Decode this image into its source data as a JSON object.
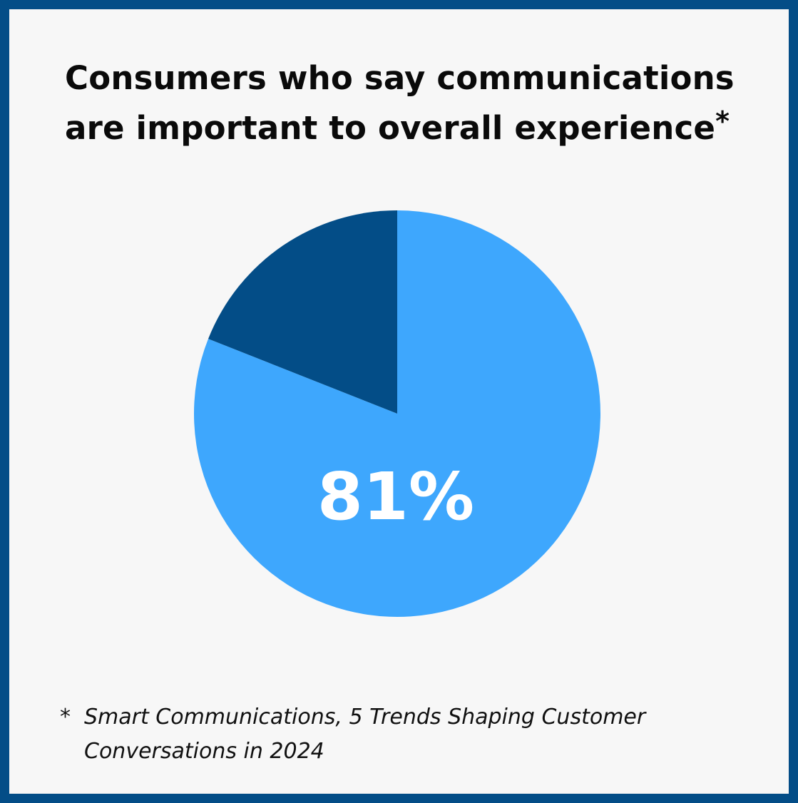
{
  "title_line1": "Consumers who say communications",
  "title_line2": "are important to overall experience",
  "title_mark": "*",
  "footnote_mark": "*",
  "footnote_line1": "Smart Communications, 5 Trends Shaping Customer",
  "footnote_line2": "Conversations in 2024",
  "colors": {
    "border": "#034d87",
    "background": "#f7f7f7",
    "main_slice": "#3ea7fd",
    "remainder_slice": "#034d87",
    "label": "#ffffff"
  },
  "chart_data": {
    "type": "pie",
    "values": [
      81,
      19
    ],
    "data_labels": [
      "81%",
      ""
    ],
    "colors": [
      "#3ea7fd",
      "#034d87"
    ],
    "start": "12 o'clock",
    "direction": "clockwise"
  }
}
